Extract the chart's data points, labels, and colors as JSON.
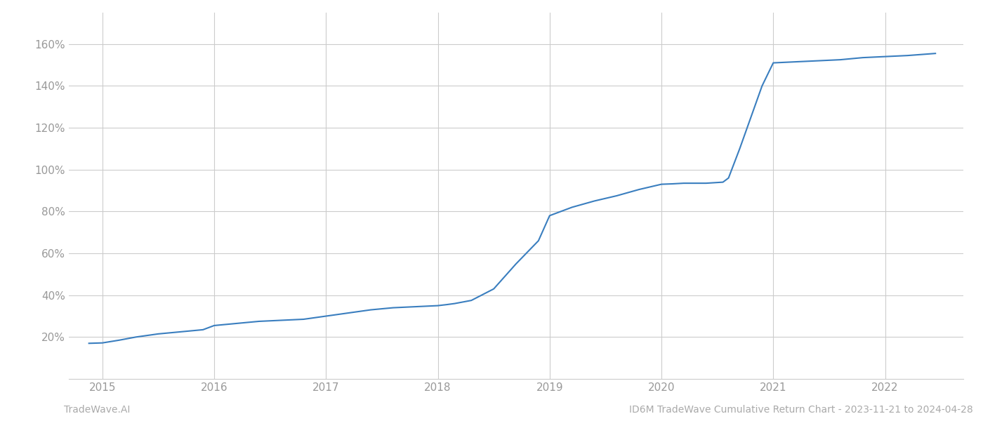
{
  "line_color": "#3a7ebf",
  "background_color": "#ffffff",
  "grid_color": "#cccccc",
  "x_tick_labels": [
    "2015",
    "2016",
    "2017",
    "2018",
    "2019",
    "2020",
    "2021",
    "2022"
  ],
  "x_tick_positions": [
    2015,
    2016,
    2017,
    2018,
    2019,
    2020,
    2021,
    2022
  ],
  "x_values": [
    2014.88,
    2015.0,
    2015.15,
    2015.3,
    2015.5,
    2015.7,
    2015.9,
    2016.0,
    2016.2,
    2016.4,
    2016.6,
    2016.8,
    2017.0,
    2017.2,
    2017.4,
    2017.6,
    2017.8,
    2018.0,
    2018.08,
    2018.15,
    2018.3,
    2018.5,
    2018.7,
    2018.9,
    2019.0,
    2019.05,
    2019.1,
    2019.2,
    2019.4,
    2019.6,
    2019.8,
    2020.0,
    2020.1,
    2020.2,
    2020.4,
    2020.55,
    2020.6,
    2020.7,
    2020.8,
    2020.9,
    2021.0,
    2021.2,
    2021.4,
    2021.6,
    2021.8,
    2022.0,
    2022.2,
    2022.45
  ],
  "y_values": [
    17.0,
    17.2,
    18.5,
    20.0,
    21.5,
    22.5,
    23.5,
    25.5,
    26.5,
    27.5,
    28.0,
    28.5,
    30.0,
    31.5,
    33.0,
    34.0,
    34.5,
    35.0,
    35.5,
    36.0,
    37.5,
    43.0,
    55.0,
    66.0,
    78.0,
    79.0,
    80.0,
    82.0,
    85.0,
    87.5,
    90.5,
    93.0,
    93.2,
    93.5,
    93.5,
    94.0,
    96.0,
    110.0,
    125.0,
    140.0,
    151.0,
    151.5,
    152.0,
    152.5,
    153.5,
    154.0,
    154.5,
    155.5
  ],
  "ylim": [
    0,
    175
  ],
  "xlim": [
    2014.7,
    2022.7
  ],
  "yticks": [
    20,
    40,
    60,
    80,
    100,
    120,
    140,
    160
  ],
  "ytick_labels": [
    "20%",
    "40%",
    "60%",
    "80%",
    "100%",
    "120%",
    "140%",
    "160%"
  ],
  "line_width": 1.5,
  "fig_width": 14.0,
  "fig_height": 6.0,
  "label_color": "#999999",
  "bottom_text_color": "#aaaaaa",
  "bottom_left_text": "TradeWave.AI",
  "bottom_right_text": "ID6M TradeWave Cumulative Return Chart - 2023-11-21 to 2024-04-28"
}
